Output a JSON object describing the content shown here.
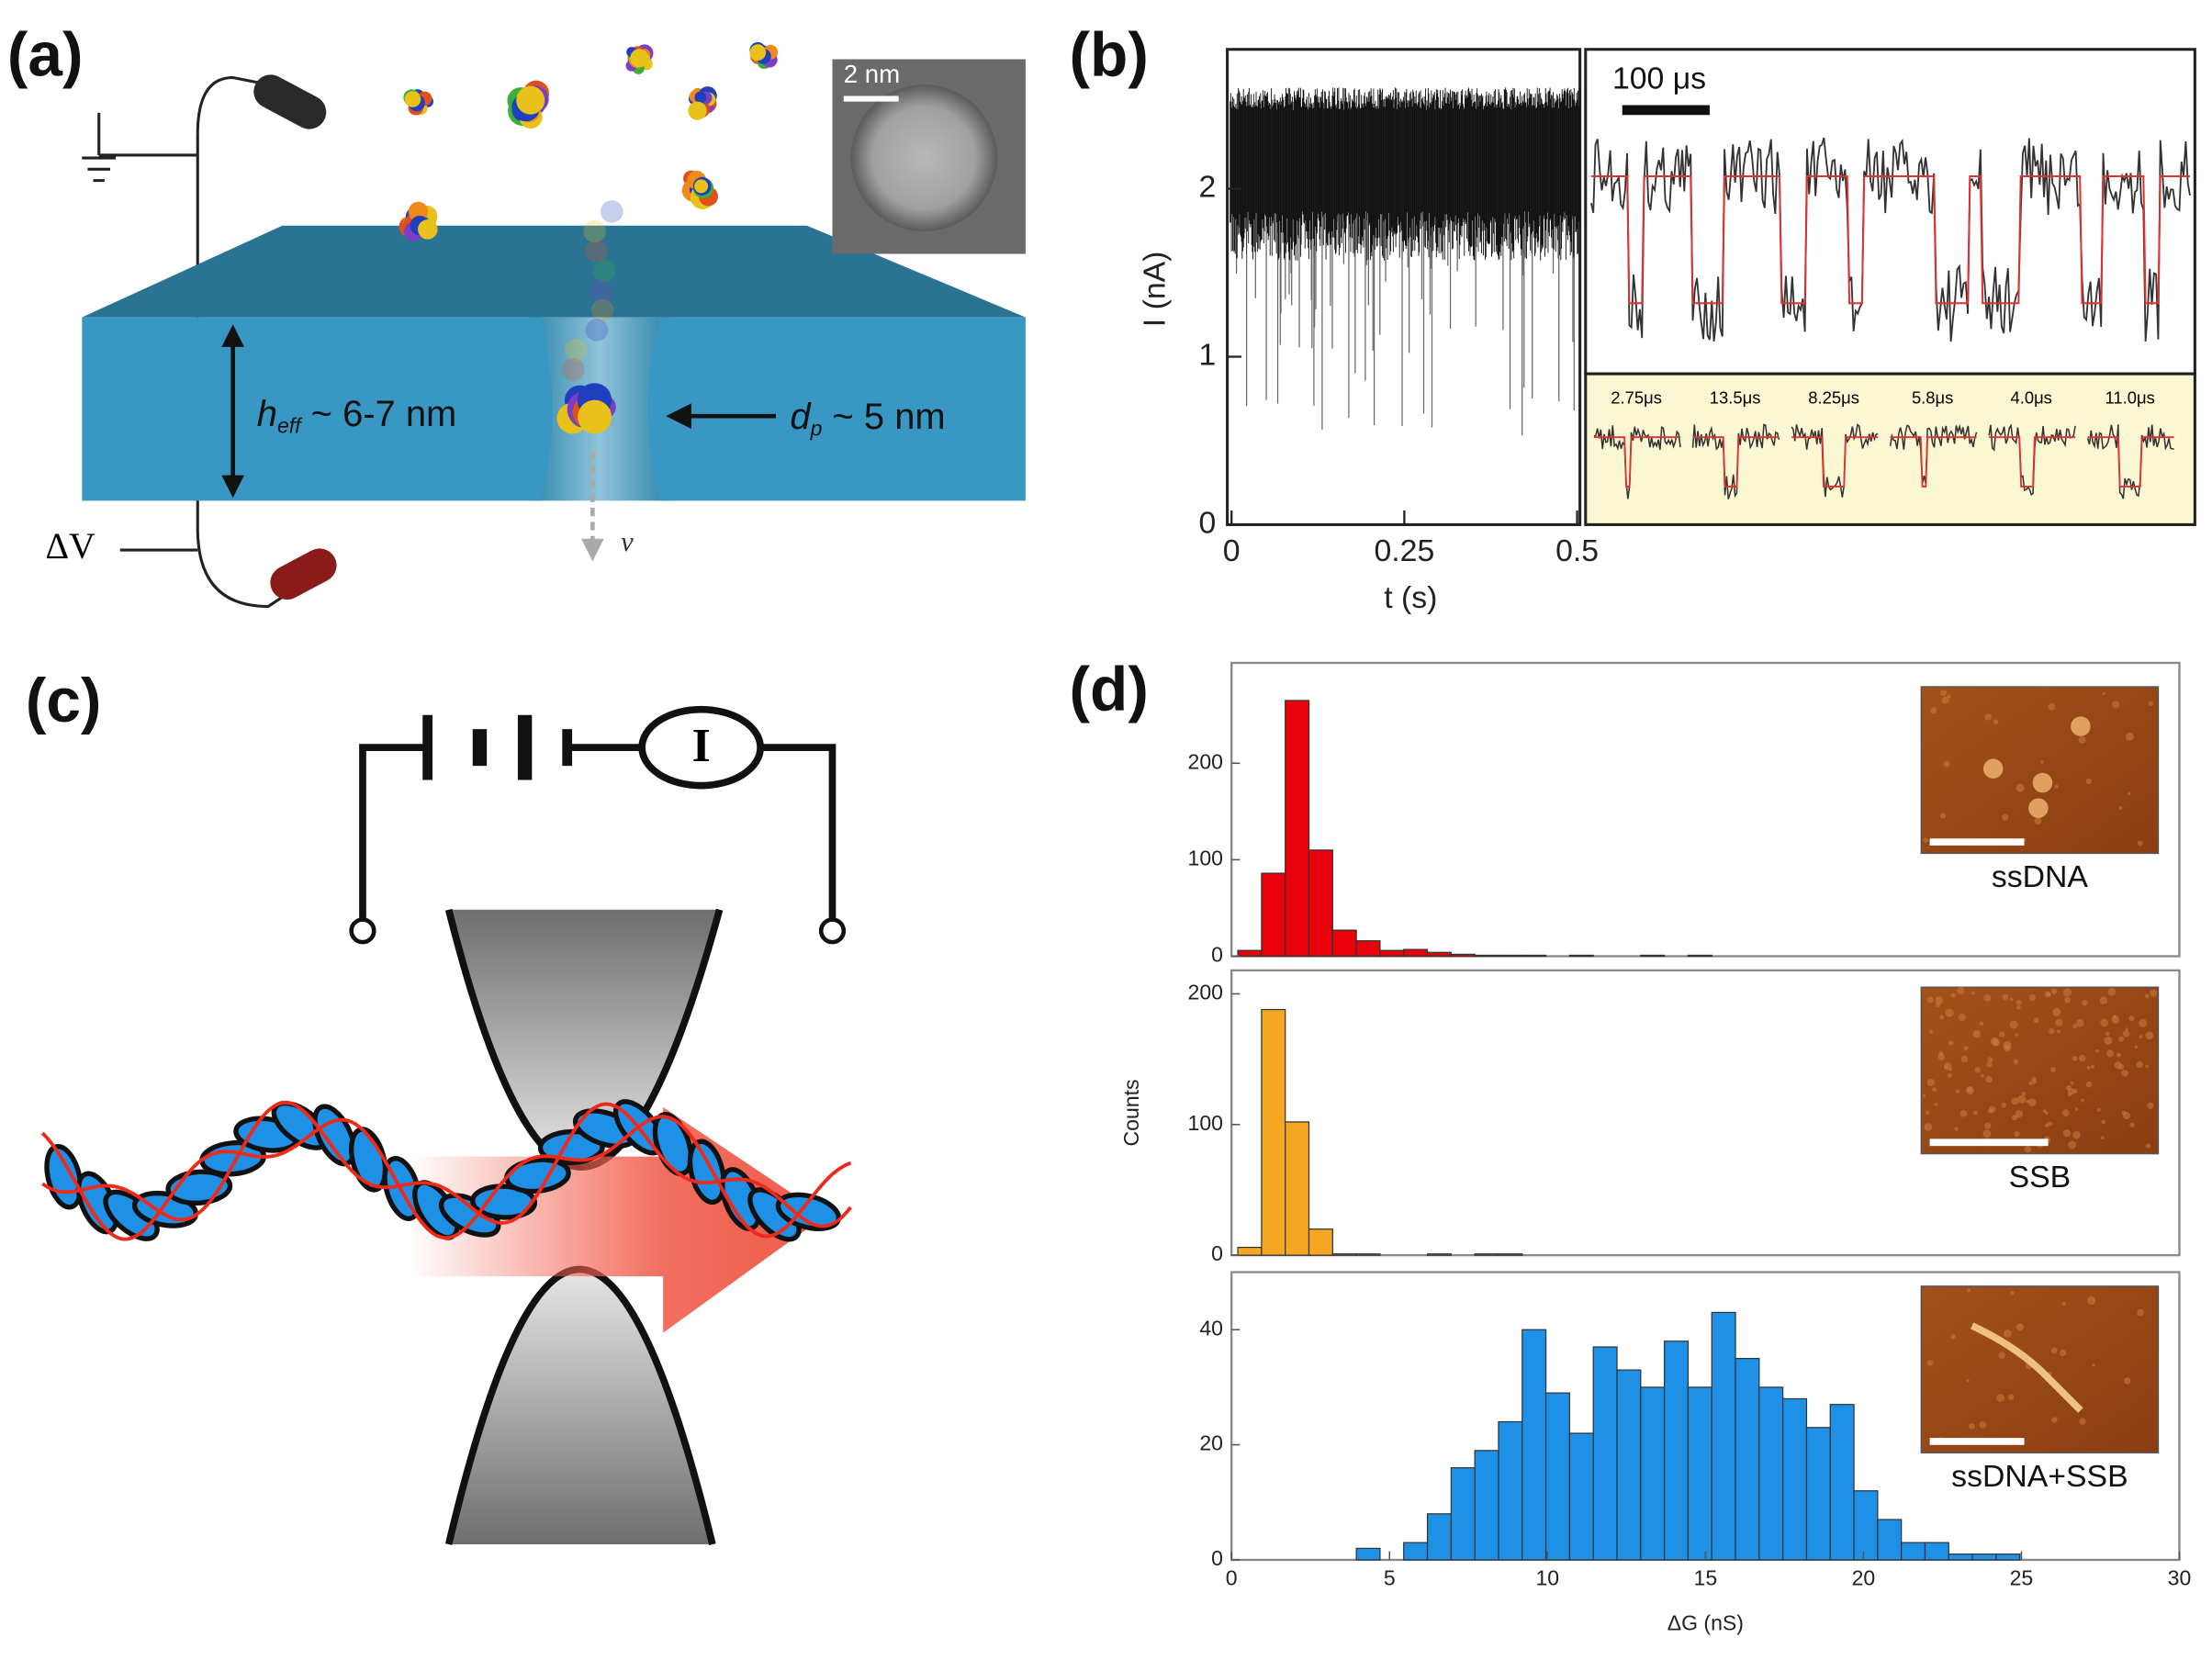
{
  "panel_labels": [
    "(a)",
    "(b)",
    "(c)",
    "(d)"
  ],
  "panel_a": {
    "scale_bar": "2 nm",
    "h_symbol": "h",
    "h_sub": "eff",
    "h_text": " ~ 6-7 nm",
    "d_symbol": "d",
    "d_sub": "p",
    "d_text": " ~ 5 nm",
    "voltage": "ΔV",
    "velocity": "ν"
  },
  "panel_c": {
    "meter": "I"
  },
  "chart_data": [
    {
      "type": "trace",
      "panel": "(b)",
      "x_label": "t (s)",
      "y_label": "I (nA)",
      "xlim": [
        0,
        0.5
      ],
      "xticks": [
        0,
        0.25,
        0.5
      ],
      "ylim": [
        0,
        2.83
      ],
      "yticks": [
        0,
        1,
        2
      ],
      "scale_bar": "100 μs",
      "dwell_labels": [
        "2.75μs",
        "13.5μs",
        "8.25μs",
        "5.8μs",
        "4.0μs",
        "11.0μs"
      ]
    },
    {
      "type": "histogram",
      "panel": "(d)",
      "color": "#e8000b",
      "inset_label": "ssDNA",
      "bins": [
        0.2,
        0.95,
        1.7,
        2.45,
        3.2,
        3.95,
        4.7,
        5.45,
        6.2,
        6.95,
        7.7,
        8.45,
        9.2,
        9.95,
        10.7,
        11.45,
        12.2,
        12.95,
        13.7,
        14.45,
        15.2
      ],
      "counts": [
        6,
        86,
        265,
        110,
        27,
        16,
        6,
        7,
        4,
        2,
        1,
        1,
        1,
        0,
        1,
        0,
        0,
        1,
        0,
        1
      ],
      "xlim": [
        0,
        30
      ],
      "ylim": [
        0,
        304
      ],
      "yticks": [
        0,
        100,
        200
      ]
    },
    {
      "type": "histogram",
      "panel": "(d)",
      "color": "#f5a623",
      "inset_label": "SSB",
      "y_label": "Counts",
      "bins": [
        0.2,
        0.95,
        1.7,
        2.45,
        3.2,
        3.95,
        4.7,
        5.45,
        6.2,
        6.95,
        7.7,
        8.45,
        9.2
      ],
      "counts": [
        6,
        188,
        102,
        20,
        1,
        1,
        0,
        0,
        1,
        0,
        1,
        1
      ],
      "xlim": [
        0,
        30
      ],
      "ylim": [
        0,
        218
      ],
      "yticks": [
        0,
        100,
        200
      ]
    },
    {
      "type": "histogram",
      "panel": "(d)",
      "color": "#1e90e6",
      "inset_label": "ssDNA+SSB",
      "x_label": "ΔG (nS)",
      "bins": [
        3.95,
        4.7,
        5.45,
        6.2,
        6.95,
        7.7,
        8.45,
        9.2,
        9.95,
        10.7,
        11.45,
        12.2,
        12.95,
        13.7,
        14.45,
        15.2,
        15.95,
        16.7,
        17.45,
        18.2,
        18.95,
        19.7,
        20.45,
        21.2,
        21.95,
        22.7,
        23.45,
        24.2,
        24.95
      ],
      "counts": [
        2,
        0,
        3,
        8,
        16,
        19,
        24,
        40,
        29,
        22,
        37,
        33,
        30,
        38,
        30,
        43,
        35,
        30,
        28,
        23,
        27,
        12,
        7,
        3,
        3,
        1,
        1,
        1
      ],
      "xlim": [
        0,
        30
      ],
      "xticks": [
        0,
        5,
        10,
        15,
        20,
        25,
        30
      ],
      "ylim": [
        0,
        50
      ],
      "yticks": [
        0,
        20,
        40
      ]
    }
  ]
}
